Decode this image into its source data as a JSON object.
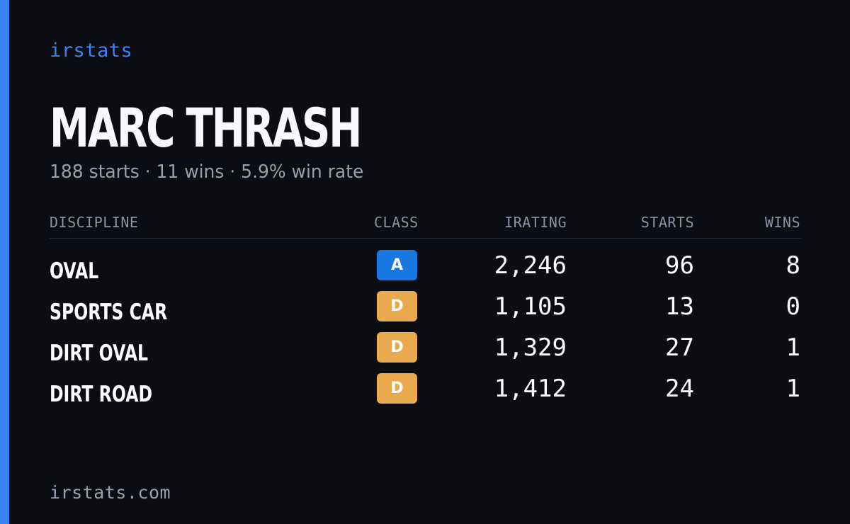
{
  "brand": "irstats",
  "driver": {
    "name": "MARC THRASH",
    "summary": "188 starts · 11 wins · 5.9% win rate"
  },
  "table": {
    "headers": {
      "discipline": "DISCIPLINE",
      "class": "CLASS",
      "irating": "IRATING",
      "starts": "STARTS",
      "wins": "WINS"
    },
    "rows": [
      {
        "discipline": "OVAL",
        "class": "A",
        "class_color": "#1877e0",
        "irating": "2,246",
        "starts": "96",
        "wins": "8"
      },
      {
        "discipline": "SPORTS CAR",
        "class": "D",
        "class_color": "#e8a94f",
        "irating": "1,105",
        "starts": "13",
        "wins": "0"
      },
      {
        "discipline": "DIRT OVAL",
        "class": "D",
        "class_color": "#e8a94f",
        "irating": "1,329",
        "starts": "27",
        "wins": "1"
      },
      {
        "discipline": "DIRT ROAD",
        "class": "D",
        "class_color": "#e8a94f",
        "irating": "1,412",
        "starts": "24",
        "wins": "1"
      }
    ]
  },
  "footer": {
    "site": "irstats.com"
  },
  "colors": {
    "background": "#0b0d13",
    "accent": "#3b82f6",
    "class_a": "#1877e0",
    "class_d": "#e8a94f"
  }
}
